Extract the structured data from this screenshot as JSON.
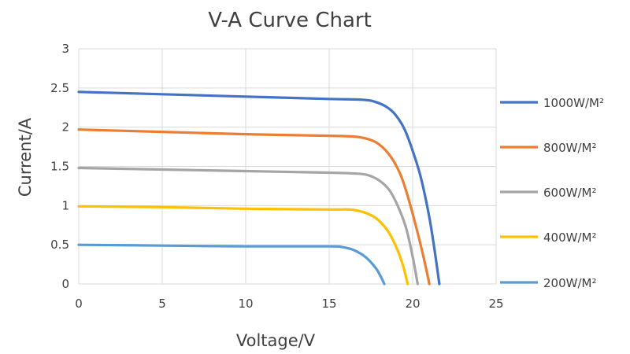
{
  "chart_data": {
    "type": "line",
    "title": "V-A Curve Chart",
    "xlabel": "Voltage/V",
    "ylabel": "Current/A",
    "xlim": [
      0,
      25
    ],
    "ylim": [
      0,
      3
    ],
    "x_ticks": [
      "0",
      "5",
      "10",
      "15",
      "20",
      "25"
    ],
    "y_ticks": [
      "0",
      "0.5",
      "1",
      "1.5",
      "2",
      "2.5",
      "3"
    ],
    "grid": true,
    "legend_position": "right",
    "series": [
      {
        "name": "1000W/M²",
        "color": "#4472C4",
        "x": [
          0,
          5,
          10,
          15,
          17,
          17.8,
          18.5,
          19,
          19.5,
          20,
          20.5,
          21,
          21.3,
          21.6
        ],
        "y": [
          2.45,
          2.42,
          2.39,
          2.36,
          2.35,
          2.32,
          2.25,
          2.15,
          1.98,
          1.7,
          1.35,
          0.85,
          0.45,
          0
        ]
      },
      {
        "name": "800W/M²",
        "color": "#ED7D31",
        "x": [
          0,
          5,
          10,
          15,
          16.5,
          17.3,
          18,
          18.7,
          19.3,
          19.8,
          20.3,
          20.7,
          21
        ],
        "y": [
          1.97,
          1.94,
          1.91,
          1.89,
          1.88,
          1.85,
          1.78,
          1.62,
          1.38,
          1.05,
          0.65,
          0.3,
          0
        ]
      },
      {
        "name": "600W/M²",
        "color": "#A5A5A5",
        "x": [
          0,
          5,
          10,
          15,
          16.5,
          17.3,
          18,
          18.6,
          19.1,
          19.6,
          20,
          20.3
        ],
        "y": [
          1.48,
          1.46,
          1.44,
          1.42,
          1.41,
          1.39,
          1.32,
          1.2,
          1.0,
          0.72,
          0.35,
          0
        ]
      },
      {
        "name": "400W/M²",
        "color": "#FFC000",
        "x": [
          0,
          5,
          10,
          15,
          16.2,
          17,
          17.8,
          18.5,
          19,
          19.4,
          19.7
        ],
        "y": [
          0.99,
          0.98,
          0.96,
          0.95,
          0.95,
          0.92,
          0.84,
          0.68,
          0.48,
          0.25,
          0
        ]
      },
      {
        "name": "200W/M²",
        "color": "#5B9BD5",
        "x": [
          0,
          5,
          10,
          15,
          15.8,
          16.5,
          17.2,
          17.8,
          18.1,
          18.3
        ],
        "y": [
          0.5,
          0.49,
          0.48,
          0.48,
          0.47,
          0.43,
          0.34,
          0.2,
          0.09,
          0
        ]
      }
    ]
  }
}
